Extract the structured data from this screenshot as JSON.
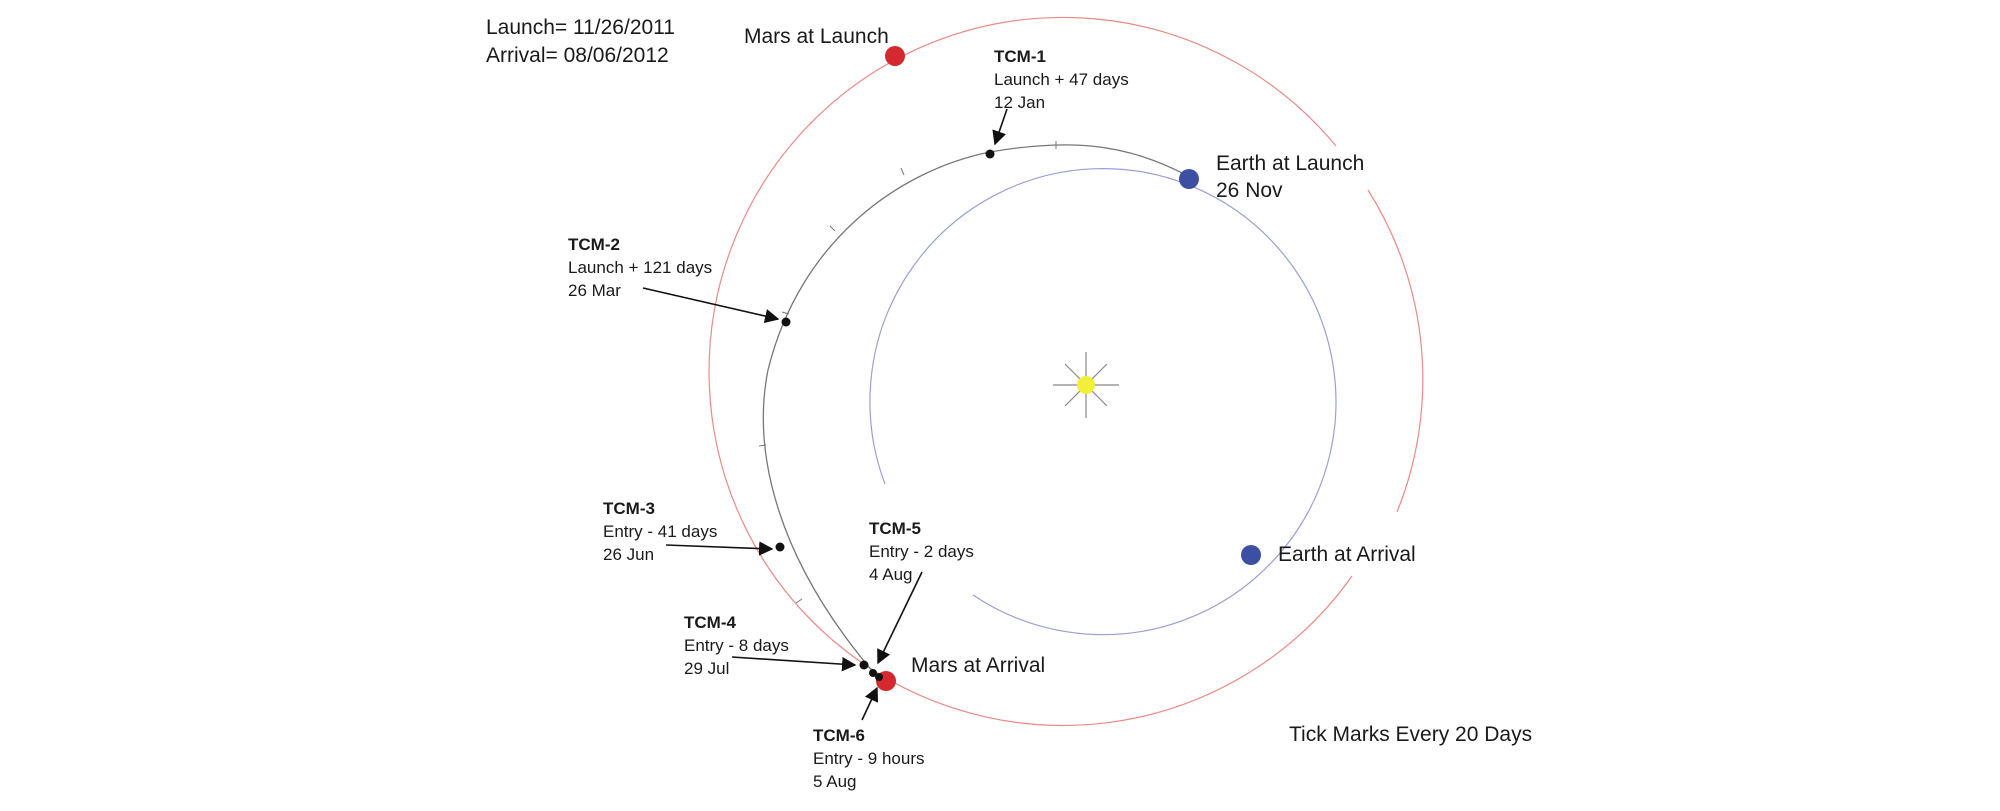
{
  "header": {
    "launch": "Launch= 11/26/2011",
    "arrival": "Arrival=  08/06/2012"
  },
  "planets": {
    "mars_launch": "Mars at Launch",
    "mars_arrival": "Mars at Arrival",
    "earth_launch": "Earth at Launch",
    "earth_launch_date": "26 Nov",
    "earth_arrival": "Earth at Arrival"
  },
  "tcm": [
    {
      "name": "TCM-1",
      "timing": "Launch + 47 days",
      "date": "12 Jan"
    },
    {
      "name": "TCM-2",
      "timing": "Launch + 121 days",
      "date": "26 Mar"
    },
    {
      "name": "TCM-3",
      "timing": "Entry - 41 days",
      "date": "26 Jun"
    },
    {
      "name": "TCM-4",
      "timing": "Entry - 8 days",
      "date": "29 Jul"
    },
    {
      "name": "TCM-5",
      "timing": "Entry - 2 days",
      "date": "4 Aug"
    },
    {
      "name": "TCM-6",
      "timing": "Entry - 9 hours",
      "date": "5 Aug"
    }
  ],
  "footnote": "Tick Marks Every 20 Days",
  "colors": {
    "mars": "#d42a2f",
    "earth": "#3d4fa3",
    "sun": "#f2ee3a",
    "mars_orbit": "#e98b85",
    "earth_orbit": "#9aa0d0",
    "trajectory": "#777777"
  }
}
